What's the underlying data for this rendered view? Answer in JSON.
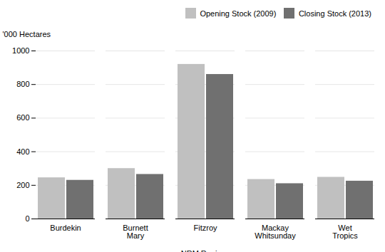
{
  "chart_data": {
    "type": "bar",
    "categories": [
      "Burdekin",
      "Burnett\nMary",
      "Fitzroy",
      "Mackay\nWhitsunday",
      "Wet\nTropics"
    ],
    "series": [
      {
        "name": "Opening Stock (2009)",
        "color": "#c0c0c0",
        "values": [
          245,
          300,
          920,
          235,
          248
        ]
      },
      {
        "name": "Closing Stock (2013)",
        "color": "#707070",
        "values": [
          230,
          265,
          860,
          210,
          225
        ]
      }
    ],
    "xlabel": "NRM Regions",
    "ylabel": "'000 Hectares",
    "ylim": [
      0,
      1000
    ],
    "yticks": [
      0,
      200,
      400,
      600,
      800,
      1000
    ],
    "grid": true,
    "legend": "upper right"
  }
}
